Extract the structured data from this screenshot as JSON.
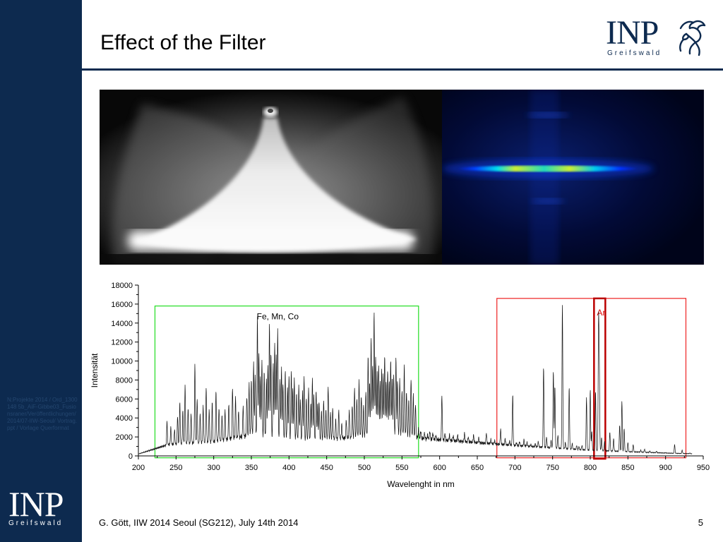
{
  "slide": {
    "title": "Effect of the Filter",
    "footer": "G. Gött, IIW 2014 Seoul (SG212), July 14th 2014",
    "page_number": "5"
  },
  "sidebar": {
    "note": "N:Projekte 2014 / Ord_1300148 5b_AiF-Gibbe03_Fusionsraner/Veröffentlichungen/2014/07-IIW-Seoul/ Vortrag.ppt / Vorlage Querformat",
    "logo_text": "INP",
    "logo_subtext": "Greifswald"
  },
  "header_logo": {
    "text": "INP",
    "subtext": "Greifswald"
  },
  "images": {
    "left": "arc-photo-grayscale",
    "right": "filtered-false-color-image"
  },
  "colors": {
    "brand_navy": "#0d2a4f",
    "highlight_green": "#22dd22",
    "highlight_red": "#ee2222",
    "marker_dark_red": "#bb0000"
  },
  "chart_data": {
    "type": "line",
    "title": "",
    "xlabel": "Wavelenght in nm",
    "ylabel": "Intensität",
    "xlim": [
      200,
      950
    ],
    "ylim": [
      0,
      18000
    ],
    "xticks": [
      200,
      250,
      300,
      350,
      400,
      450,
      500,
      550,
      600,
      650,
      700,
      750,
      800,
      850,
      900,
      950
    ],
    "yticks": [
      0,
      2000,
      4000,
      6000,
      8000,
      10000,
      12000,
      14000,
      16000,
      18000
    ],
    "grid": false,
    "annotations": [
      {
        "label": "Fe, Mn, Co",
        "region": [
          222,
          572
        ],
        "color": "#22dd22"
      },
      {
        "label": "",
        "region": [
          676,
          927
        ],
        "color": "#ee2222"
      },
      {
        "label": "Ar",
        "region": [
          805,
          820
        ],
        "color": "#bb0000"
      }
    ],
    "series": [
      {
        "name": "",
        "baseline": [
          [
            200,
            200
          ],
          [
            240,
            1200
          ],
          [
            300,
            1500
          ],
          [
            350,
            2200
          ],
          [
            420,
            1600
          ],
          [
            480,
            1900
          ],
          [
            540,
            2400
          ],
          [
            580,
            1800
          ],
          [
            600,
            1700
          ],
          [
            650,
            1400
          ],
          [
            700,
            1100
          ],
          [
            760,
            800
          ],
          [
            800,
            600
          ],
          [
            850,
            450
          ],
          [
            900,
            300
          ],
          [
            950,
            200
          ]
        ],
        "peaks": [
          [
            238,
            3600
          ],
          [
            243,
            3000
          ],
          [
            248,
            2800
          ],
          [
            252,
            4200
          ],
          [
            255,
            5600
          ],
          [
            259,
            4800
          ],
          [
            262,
            7400
          ],
          [
            266,
            5000
          ],
          [
            270,
            4400
          ],
          [
            275,
            9600
          ],
          [
            278,
            6000
          ],
          [
            282,
            4400
          ],
          [
            286,
            5200
          ],
          [
            290,
            7200
          ],
          [
            294,
            4800
          ],
          [
            298,
            5600
          ],
          [
            303,
            6800
          ],
          [
            307,
            5000
          ],
          [
            311,
            4200
          ],
          [
            315,
            4800
          ],
          [
            320,
            5600
          ],
          [
            325,
            7200
          ],
          [
            329,
            6200
          ],
          [
            333,
            4800
          ],
          [
            339,
            5200
          ],
          [
            344,
            6400
          ],
          [
            347,
            7600
          ],
          [
            350,
            8000
          ],
          [
            353,
            9800
          ],
          [
            355,
            8600
          ],
          [
            358,
            14600
          ],
          [
            360,
            11000
          ],
          [
            362,
            8400
          ],
          [
            364,
            10200
          ],
          [
            367,
            9000
          ],
          [
            370,
            8000
          ],
          [
            372,
            9600
          ],
          [
            374,
            14000
          ],
          [
            376,
            11000
          ],
          [
            379,
            9800
          ],
          [
            381,
            12000
          ],
          [
            383,
            10600
          ],
          [
            385,
            13400
          ],
          [
            388,
            8200
          ],
          [
            390,
            9200
          ],
          [
            392,
            7800
          ],
          [
            395,
            9000
          ],
          [
            398,
            7200
          ],
          [
            400,
            8600
          ],
          [
            403,
            9000
          ],
          [
            405,
            7200
          ],
          [
            407,
            8200
          ],
          [
            410,
            6600
          ],
          [
            413,
            7400
          ],
          [
            415,
            6000
          ],
          [
            418,
            6800
          ],
          [
            420,
            8400
          ],
          [
            423,
            6200
          ],
          [
            426,
            7000
          ],
          [
            429,
            5600
          ],
          [
            431,
            8200
          ],
          [
            433,
            6400
          ],
          [
            436,
            7000
          ],
          [
            438,
            5400
          ],
          [
            440,
            5800
          ],
          [
            443,
            4800
          ],
          [
            446,
            5800
          ],
          [
            449,
            4800
          ],
          [
            452,
            7400
          ],
          [
            455,
            4600
          ],
          [
            458,
            5000
          ],
          [
            462,
            3800
          ],
          [
            466,
            4800
          ],
          [
            470,
            3400
          ],
          [
            476,
            3800
          ],
          [
            480,
            4800
          ],
          [
            484,
            5400
          ],
          [
            487,
            7200
          ],
          [
            490,
            6000
          ],
          [
            493,
            7800
          ],
          [
            496,
            6400
          ],
          [
            499,
            5400
          ],
          [
            502,
            6800
          ],
          [
            505,
            10400
          ],
          [
            507,
            8000
          ],
          [
            509,
            12400
          ],
          [
            511,
            9600
          ],
          [
            513,
            15200
          ],
          [
            515,
            10600
          ],
          [
            517,
            8600
          ],
          [
            519,
            9800
          ],
          [
            521,
            7800
          ],
          [
            523,
            9200
          ],
          [
            525,
            8600
          ],
          [
            527,
            10800
          ],
          [
            529,
            7600
          ],
          [
            531,
            9200
          ],
          [
            533,
            7800
          ],
          [
            535,
            10200
          ],
          [
            537,
            8200
          ],
          [
            539,
            8800
          ],
          [
            542,
            10400
          ],
          [
            544,
            8000
          ],
          [
            547,
            8200
          ],
          [
            550,
            7000
          ],
          [
            553,
            9400
          ],
          [
            556,
            6800
          ],
          [
            559,
            6000
          ],
          [
            562,
            8200
          ],
          [
            565,
            6400
          ],
          [
            568,
            5400
          ],
          [
            572,
            2800
          ],
          [
            575,
            2600
          ],
          [
            580,
            2400
          ],
          [
            584,
            2200
          ],
          [
            587,
            2600
          ],
          [
            591,
            2400
          ],
          [
            595,
            2200
          ],
          [
            603,
            6400
          ],
          [
            607,
            2400
          ],
          [
            613,
            2200
          ],
          [
            618,
            2100
          ],
          [
            624,
            2200
          ],
          [
            633,
            2400
          ],
          [
            638,
            2000
          ],
          [
            645,
            2200
          ],
          [
            652,
            1900
          ],
          [
            662,
            2400
          ],
          [
            668,
            1700
          ],
          [
            673,
            1600
          ],
          [
            681,
            2800
          ],
          [
            687,
            1800
          ],
          [
            693,
            1600
          ],
          [
            697,
            6500
          ],
          [
            702,
            1400
          ],
          [
            706,
            1500
          ],
          [
            712,
            1700
          ],
          [
            716,
            1400
          ],
          [
            721,
            1200
          ],
          [
            727,
            1300
          ],
          [
            731,
            1500
          ],
          [
            738,
            9500
          ],
          [
            742,
            2000
          ],
          [
            748,
            1600
          ],
          [
            751,
            9000
          ],
          [
            753,
            7400
          ],
          [
            757,
            2200
          ],
          [
            763,
            16000
          ],
          [
            767,
            1400
          ],
          [
            772,
            7200
          ],
          [
            776,
            1300
          ],
          [
            782,
            1100
          ],
          [
            785,
            1000
          ],
          [
            789,
            1100
          ],
          [
            795,
            6100
          ],
          [
            800,
            7000
          ],
          [
            802,
            2600
          ],
          [
            807,
            6800
          ],
          [
            811,
            13800
          ],
          [
            812,
            9000
          ],
          [
            815,
            1900
          ],
          [
            819,
            1500
          ],
          [
            826,
            2500
          ],
          [
            831,
            1800
          ],
          [
            839,
            3200
          ],
          [
            842,
            5800
          ],
          [
            845,
            2900
          ],
          [
            850,
            1400
          ],
          [
            857,
            1200
          ],
          [
            867,
            600
          ],
          [
            872,
            700
          ],
          [
            879,
            500
          ],
          [
            888,
            500
          ],
          [
            900,
            350
          ],
          [
            912,
            1200
          ],
          [
            922,
            600
          ],
          [
            932,
            300
          ]
        ]
      }
    ]
  }
}
